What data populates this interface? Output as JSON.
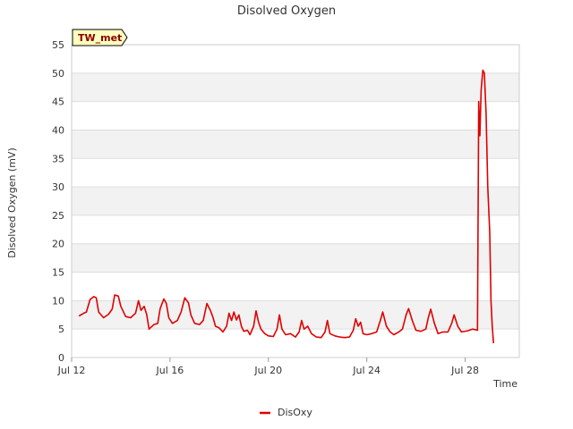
{
  "chart_data": {
    "type": "line",
    "title": "Disolved Oxygen",
    "xlabel": "Time",
    "ylabel": "Disolved Oxygen (mV)",
    "badge": "TW_met",
    "ylim": [
      0,
      55
    ],
    "yticks": [
      0,
      5,
      10,
      15,
      20,
      25,
      30,
      35,
      40,
      45,
      50,
      55
    ],
    "xlim": [
      12,
      30.2
    ],
    "xticks": [
      {
        "value": 12,
        "label": "Jul 12"
      },
      {
        "value": 16,
        "label": "Jul 16"
      },
      {
        "value": 20,
        "label": "Jul 20"
      },
      {
        "value": 24,
        "label": "Jul 24"
      },
      {
        "value": 28,
        "label": "Jul 28"
      }
    ],
    "series": [
      {
        "name": "DisOxy",
        "color": "#e00000",
        "points": [
          [
            12.3,
            7.3
          ],
          [
            12.5,
            7.8
          ],
          [
            12.6,
            8.0
          ],
          [
            12.75,
            10.2
          ],
          [
            12.9,
            10.7
          ],
          [
            13.0,
            10.5
          ],
          [
            13.1,
            8.0
          ],
          [
            13.3,
            7.0
          ],
          [
            13.5,
            7.6
          ],
          [
            13.65,
            8.5
          ],
          [
            13.75,
            11.0
          ],
          [
            13.9,
            10.8
          ],
          [
            14.0,
            9.0
          ],
          [
            14.2,
            7.2
          ],
          [
            14.4,
            7.0
          ],
          [
            14.6,
            7.8
          ],
          [
            14.72,
            10.0
          ],
          [
            14.82,
            8.3
          ],
          [
            14.95,
            9.0
          ],
          [
            15.05,
            7.6
          ],
          [
            15.15,
            5.0
          ],
          [
            15.35,
            5.8
          ],
          [
            15.5,
            6.0
          ],
          [
            15.6,
            8.6
          ],
          [
            15.75,
            10.3
          ],
          [
            15.85,
            9.5
          ],
          [
            15.95,
            7.0
          ],
          [
            16.1,
            6.0
          ],
          [
            16.3,
            6.5
          ],
          [
            16.45,
            8.0
          ],
          [
            16.6,
            10.5
          ],
          [
            16.75,
            9.6
          ],
          [
            16.85,
            7.5
          ],
          [
            17.0,
            6.0
          ],
          [
            17.2,
            5.8
          ],
          [
            17.35,
            6.5
          ],
          [
            17.5,
            9.5
          ],
          [
            17.65,
            8.2
          ],
          [
            17.75,
            7.0
          ],
          [
            17.85,
            5.5
          ],
          [
            18.0,
            5.2
          ],
          [
            18.15,
            4.5
          ],
          [
            18.3,
            5.5
          ],
          [
            18.4,
            7.8
          ],
          [
            18.5,
            6.5
          ],
          [
            18.6,
            8.0
          ],
          [
            18.7,
            6.6
          ],
          [
            18.8,
            7.5
          ],
          [
            18.9,
            5.5
          ],
          [
            19.0,
            4.6
          ],
          [
            19.15,
            4.8
          ],
          [
            19.25,
            4.0
          ],
          [
            19.4,
            5.5
          ],
          [
            19.5,
            8.2
          ],
          [
            19.6,
            6.2
          ],
          [
            19.7,
            5.0
          ],
          [
            19.85,
            4.2
          ],
          [
            20.0,
            3.8
          ],
          [
            20.2,
            3.7
          ],
          [
            20.35,
            5.0
          ],
          [
            20.45,
            7.5
          ],
          [
            20.55,
            5.0
          ],
          [
            20.7,
            4.0
          ],
          [
            20.9,
            4.2
          ],
          [
            21.1,
            3.6
          ],
          [
            21.25,
            4.5
          ],
          [
            21.35,
            6.5
          ],
          [
            21.45,
            5.0
          ],
          [
            21.6,
            5.5
          ],
          [
            21.75,
            4.2
          ],
          [
            21.95,
            3.6
          ],
          [
            22.15,
            3.5
          ],
          [
            22.3,
            4.5
          ],
          [
            22.4,
            6.5
          ],
          [
            22.5,
            4.2
          ],
          [
            22.7,
            3.8
          ],
          [
            22.9,
            3.6
          ],
          [
            23.1,
            3.5
          ],
          [
            23.3,
            3.6
          ],
          [
            23.45,
            4.8
          ],
          [
            23.55,
            6.8
          ],
          [
            23.65,
            5.5
          ],
          [
            23.75,
            6.2
          ],
          [
            23.85,
            4.2
          ],
          [
            24.0,
            4.0
          ],
          [
            24.2,
            4.2
          ],
          [
            24.4,
            4.5
          ],
          [
            24.55,
            6.5
          ],
          [
            24.65,
            8.0
          ],
          [
            24.8,
            5.5
          ],
          [
            24.95,
            4.5
          ],
          [
            25.1,
            4.0
          ],
          [
            25.3,
            4.5
          ],
          [
            25.45,
            5.0
          ],
          [
            25.6,
            7.5
          ],
          [
            25.7,
            8.6
          ],
          [
            25.85,
            6.5
          ],
          [
            26.0,
            4.8
          ],
          [
            26.2,
            4.6
          ],
          [
            26.4,
            5.0
          ],
          [
            26.5,
            7.0
          ],
          [
            26.6,
            8.5
          ],
          [
            26.75,
            6.0
          ],
          [
            26.9,
            4.2
          ],
          [
            27.1,
            4.5
          ],
          [
            27.3,
            4.5
          ],
          [
            27.45,
            6.0
          ],
          [
            27.55,
            7.5
          ],
          [
            27.7,
            5.5
          ],
          [
            27.85,
            4.5
          ],
          [
            28.1,
            4.7
          ],
          [
            28.3,
            5.0
          ],
          [
            28.5,
            4.8
          ],
          [
            28.55,
            45.0
          ],
          [
            28.6,
            39.0
          ],
          [
            28.65,
            47.0
          ],
          [
            28.72,
            50.5
          ],
          [
            28.78,
            50.0
          ],
          [
            28.85,
            43.0
          ],
          [
            28.92,
            30.0
          ],
          [
            29.0,
            22.0
          ],
          [
            29.05,
            10.0
          ],
          [
            29.1,
            5.5
          ],
          [
            29.15,
            2.5
          ]
        ]
      }
    ],
    "legend": [
      {
        "name": "DisOxy",
        "color": "#e00000"
      }
    ],
    "legend_position": "bottom-center",
    "grid": true,
    "bands": true
  }
}
